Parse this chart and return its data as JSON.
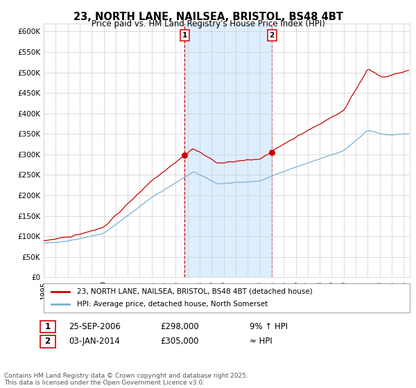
{
  "title": "23, NORTH LANE, NAILSEA, BRISTOL, BS48 4BT",
  "subtitle": "Price paid vs. HM Land Registry's House Price Index (HPI)",
  "ylabel_ticks": [
    "£0",
    "£50K",
    "£100K",
    "£150K",
    "£200K",
    "£250K",
    "£300K",
    "£350K",
    "£400K",
    "£450K",
    "£500K",
    "£550K",
    "£600K"
  ],
  "ytick_values": [
    0,
    50000,
    100000,
    150000,
    200000,
    250000,
    300000,
    350000,
    400000,
    450000,
    500000,
    550000,
    600000
  ],
  "ylim": [
    0,
    620000
  ],
  "xlim_start": 1995.0,
  "xlim_end": 2025.5,
  "marker1_x": 2006.73,
  "marker1_y": 298000,
  "marker1_label": "1",
  "marker1_date": "25-SEP-2006",
  "marker1_price": "£298,000",
  "marker1_hpi": "9% ↑ HPI",
  "marker2_x": 2014.01,
  "marker2_y": 305000,
  "marker2_label": "2",
  "marker2_date": "03-JAN-2014",
  "marker2_price": "£305,000",
  "marker2_hpi": "≈ HPI",
  "shaded_region_start": 2006.73,
  "shaded_region_end": 2014.01,
  "legend_label_red": "23, NORTH LANE, NAILSEA, BRISTOL, BS48 4BT (detached house)",
  "legend_label_blue": "HPI: Average price, detached house, North Somerset",
  "footer": "Contains HM Land Registry data © Crown copyright and database right 2025.\nThis data is licensed under the Open Government Licence v3.0.",
  "red_color": "#cc0000",
  "blue_color": "#7ab0d4",
  "shaded_color": "#ddeeff",
  "grid_color": "#cccccc",
  "background_color": "#ffffff",
  "title_fontsize": 10.5,
  "subtitle_fontsize": 8.5,
  "tick_fontsize": 7.5,
  "legend_fontsize": 7.5,
  "footer_fontsize": 6.5,
  "table_fontsize": 8.5
}
